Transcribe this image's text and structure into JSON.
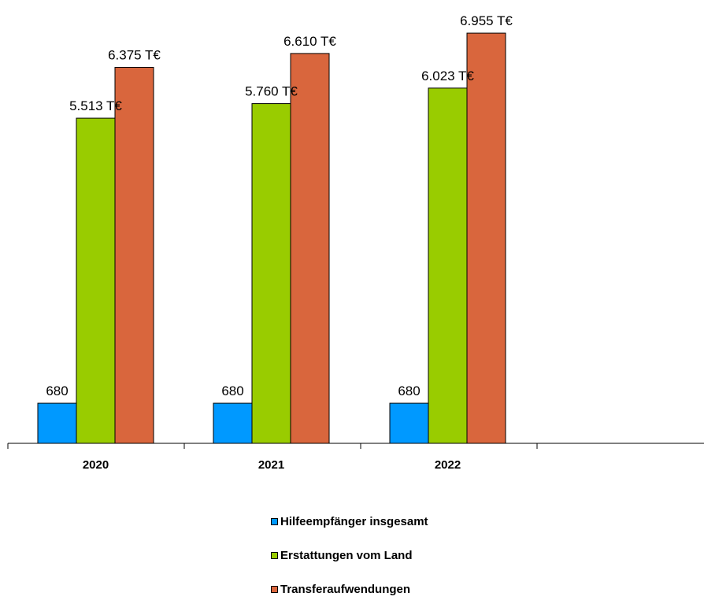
{
  "chart_data": {
    "type": "bar",
    "categories": [
      "2020",
      "2021",
      "2022"
    ],
    "series": [
      {
        "name": "Hilfeempfänger insgesamt",
        "color": "#0099ff",
        "values": [
          680,
          680,
          680
        ],
        "labels": [
          "680",
          "680",
          "680"
        ]
      },
      {
        "name": "Erstattungen vom Land",
        "color": "#99cc00",
        "values": [
          5513,
          5760,
          6023
        ],
        "labels": [
          "5.513 T€",
          "5.760 T€",
          "6.023 T€"
        ]
      },
      {
        "name": "Transferaufwendungen",
        "color": "#d9663d",
        "values": [
          6375,
          6610,
          6955
        ],
        "labels": [
          "6.375 T€",
          "6.610 T€",
          "6.955 T€"
        ]
      }
    ],
    "title": "",
    "xlabel": "",
    "ylabel": "",
    "grid": false,
    "legend_position": "bottom"
  }
}
